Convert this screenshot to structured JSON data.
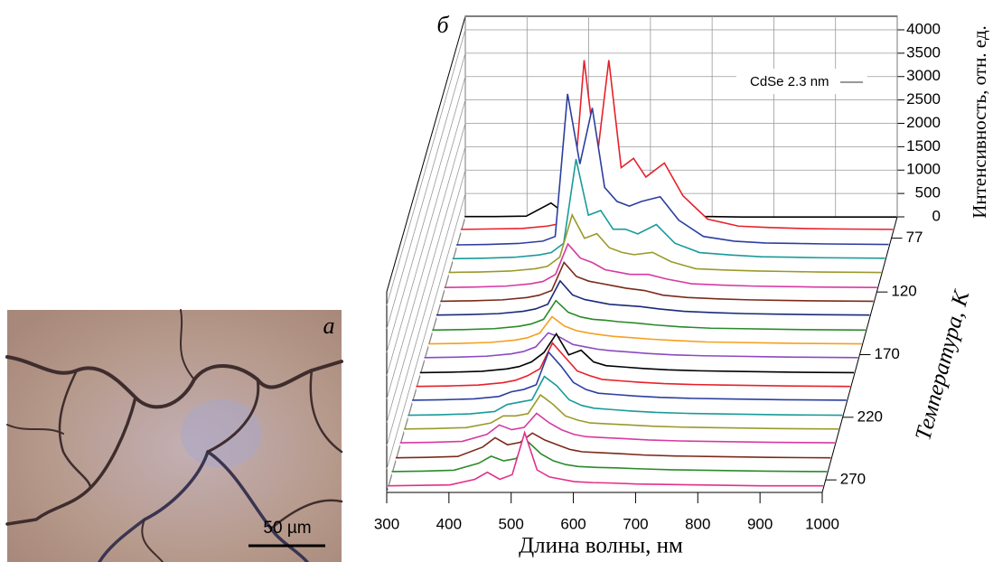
{
  "panel_a": {
    "label": "а",
    "scale_bar": "50 µm"
  },
  "chart_data": {
    "type": "waterfall",
    "panel_label": "б",
    "annotation": "CdSe 2.3 nm",
    "x_label": "Длина волны, нм",
    "y_label": "Интенсивность, отн. ед.",
    "z_label": "Температура, К",
    "xlim": [
      300,
      1000
    ],
    "xticks": [
      300,
      400,
      500,
      600,
      700,
      800,
      900,
      1000
    ],
    "ylim": [
      0,
      4000
    ],
    "yticks": [
      0,
      500,
      1000,
      1500,
      2000,
      2500,
      3000,
      3500,
      4000
    ],
    "zlim": [
      60,
      280
    ],
    "zticks": [
      77,
      120,
      170,
      220,
      270
    ],
    "x": [
      300,
      350,
      400,
      440,
      460,
      480,
      500,
      520,
      540,
      560,
      580,
      600,
      630,
      660,
      700,
      750,
      800,
      850,
      900,
      1000
    ],
    "series": [
      {
        "color": "#000000",
        "z": 62,
        "values": [
          60,
          60,
          70,
          350,
          150,
          100,
          90,
          80,
          80,
          70,
          70,
          60,
          60,
          60,
          60,
          50,
          50,
          50,
          50,
          50
        ]
      },
      {
        "color": "#e8202a",
        "z": 73,
        "values": [
          80,
          90,
          100,
          150,
          200,
          400,
          3700,
          1500,
          3700,
          1400,
          1600,
          1200,
          1500,
          800,
          300,
          150,
          120,
          100,
          90,
          80
        ]
      },
      {
        "color": "#2b3f9e",
        "z": 85,
        "values": [
          70,
          80,
          100,
          150,
          250,
          3300,
          1800,
          3000,
          1300,
          1000,
          900,
          1000,
          1100,
          600,
          250,
          150,
          110,
          100,
          90,
          80
        ]
      },
      {
        "color": "#1a9a9a",
        "z": 96,
        "values": [
          70,
          80,
          100,
          150,
          200,
          400,
          2200,
          1000,
          1100,
          700,
          700,
          600,
          800,
          400,
          200,
          150,
          110,
          100,
          90,
          80
        ]
      },
      {
        "color": "#9a9a2a",
        "z": 107,
        "values": [
          70,
          80,
          100,
          150,
          200,
          400,
          1300,
          800,
          900,
          600,
          500,
          450,
          500,
          300,
          150,
          120,
          100,
          90,
          80,
          70
        ]
      },
      {
        "color": "#d63aa0",
        "z": 119,
        "values": [
          70,
          80,
          100,
          150,
          200,
          350,
          1000,
          700,
          600,
          450,
          400,
          350,
          350,
          250,
          150,
          120,
          100,
          90,
          80,
          70
        ]
      },
      {
        "color": "#7a2a1a",
        "z": 130,
        "values": [
          70,
          80,
          100,
          150,
          200,
          300,
          900,
          600,
          500,
          450,
          400,
          350,
          300,
          200,
          150,
          120,
          100,
          90,
          80,
          70
        ]
      },
      {
        "color": "#1a2a7a",
        "z": 141,
        "values": [
          70,
          80,
          100,
          150,
          200,
          300,
          800,
          500,
          400,
          350,
          300,
          280,
          250,
          200,
          150,
          120,
          100,
          90,
          80,
          70
        ]
      },
      {
        "color": "#2a8a2a",
        "z": 153,
        "values": [
          70,
          80,
          100,
          150,
          200,
          300,
          700,
          450,
          350,
          300,
          280,
          250,
          220,
          180,
          140,
          110,
          100,
          90,
          80,
          70
        ]
      },
      {
        "color": "#f5a020",
        "z": 164,
        "values": [
          70,
          80,
          100,
          150,
          200,
          300,
          650,
          450,
          350,
          300,
          260,
          230,
          200,
          170,
          140,
          110,
          100,
          90,
          80,
          70
        ]
      },
      {
        "color": "#8a4ac0",
        "z": 175,
        "values": [
          70,
          80,
          100,
          150,
          200,
          300,
          600,
          500,
          350,
          300,
          250,
          220,
          190,
          160,
          130,
          110,
          100,
          90,
          80,
          70
        ]
      },
      {
        "color": "#000000",
        "z": 187,
        "values": [
          70,
          80,
          100,
          150,
          200,
          300,
          500,
          900,
          450,
          550,
          300,
          220,
          190,
          160,
          130,
          110,
          100,
          90,
          80,
          70
        ]
      },
      {
        "color": "#e8202a",
        "z": 198,
        "values": [
          70,
          80,
          100,
          150,
          200,
          300,
          450,
          1000,
          700,
          400,
          300,
          220,
          190,
          160,
          130,
          110,
          100,
          90,
          80,
          70
        ]
      },
      {
        "color": "#2b3f9e",
        "z": 209,
        "values": [
          70,
          80,
          100,
          150,
          250,
          300,
          400,
          1100,
          800,
          450,
          300,
          220,
          190,
          160,
          130,
          110,
          100,
          90,
          80,
          70
        ]
      },
      {
        "color": "#1a9a9a",
        "z": 221,
        "values": [
          70,
          80,
          100,
          150,
          300,
          350,
          400,
          900,
          700,
          400,
          280,
          220,
          190,
          160,
          130,
          110,
          100,
          90,
          80,
          70
        ]
      },
      {
        "color": "#9a9a2a",
        "z": 232,
        "values": [
          70,
          80,
          100,
          200,
          350,
          350,
          400,
          800,
          600,
          350,
          260,
          200,
          180,
          160,
          130,
          110,
          100,
          90,
          80,
          70
        ]
      },
      {
        "color": "#d63aa0",
        "z": 243,
        "values": [
          70,
          80,
          100,
          250,
          450,
          350,
          400,
          700,
          500,
          350,
          250,
          200,
          180,
          160,
          130,
          110,
          100,
          90,
          80,
          70
        ]
      },
      {
        "color": "#7a2a1a",
        "z": 255,
        "values": [
          70,
          80,
          100,
          300,
          500,
          350,
          400,
          600,
          450,
          350,
          250,
          200,
          180,
          160,
          130,
          110,
          100,
          90,
          80,
          70
        ]
      },
      {
        "color": "#2a8a2a",
        "z": 266,
        "values": [
          70,
          80,
          100,
          250,
          400,
          300,
          350,
          700,
          450,
          300,
          220,
          180,
          160,
          150,
          130,
          110,
          100,
          90,
          80,
          70
        ]
      },
      {
        "color": "#e0308a",
        "z": 277,
        "values": [
          60,
          70,
          80,
          200,
          350,
          200,
          300,
          1200,
          400,
          250,
          200,
          150,
          130,
          120,
          100,
          90,
          80,
          70,
          60,
          60
        ]
      }
    ]
  }
}
